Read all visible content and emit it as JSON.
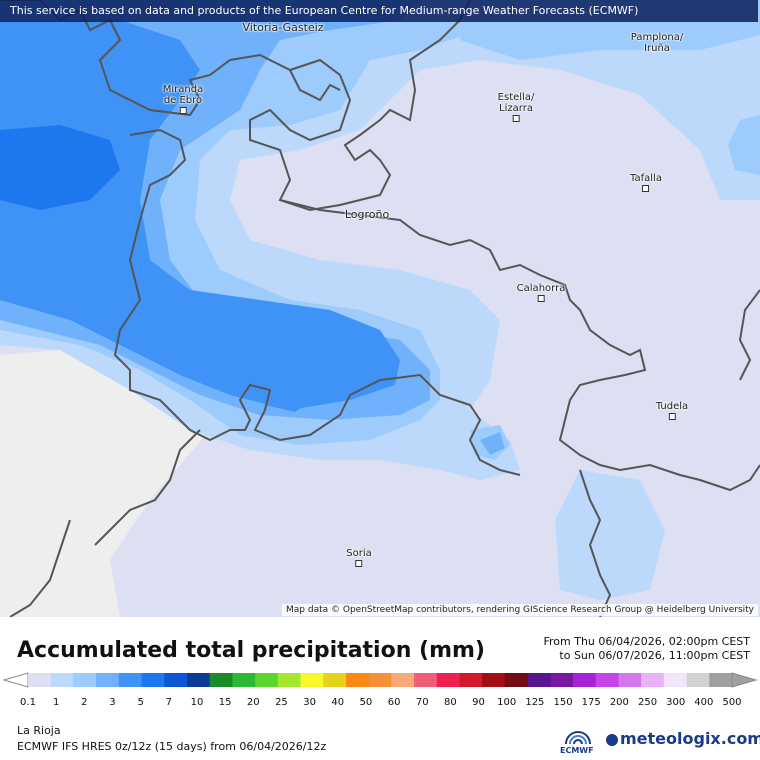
{
  "map": {
    "banner": "This service is based on data and products of the European Centre for Medium-range Weather Forecasts (ECMWF)",
    "attribution": "Map data © OpenStreetMap contributors, rendering GIScience Research Group @ Heidelberg University",
    "cities": [
      {
        "id": "vitoria",
        "label": "Vitoria-Gasteiz",
        "marker": false
      },
      {
        "id": "pamplona",
        "label": "Pamplona/\nIruña",
        "marker": false
      },
      {
        "id": "miranda",
        "label": "Miranda\nde Ebro",
        "marker": true
      },
      {
        "id": "estella",
        "label": "Estella/\nLizarra",
        "marker": true
      },
      {
        "id": "tafalla",
        "label": "Tafalla",
        "marker": true
      },
      {
        "id": "logrono",
        "label": "Logroño",
        "marker": false
      },
      {
        "id": "calahorra",
        "label": "Calahorra",
        "marker": true
      },
      {
        "id": "tudela",
        "label": "Tudela",
        "marker": true
      },
      {
        "id": "soria",
        "label": "Soria",
        "marker": true
      }
    ]
  },
  "legend": {
    "title": "Accumulated total precipitation (mm)",
    "period_from": "From Thu 06/04/2026, 02:00pm CEST",
    "period_to": "to Sun 06/07/2026, 11:00pm CEST",
    "levels": [
      "0.1",
      "1",
      "2",
      "3",
      "5",
      "7",
      "10",
      "15",
      "20",
      "25",
      "30",
      "40",
      "50",
      "60",
      "70",
      "80",
      "90",
      "100",
      "125",
      "150",
      "175",
      "200",
      "250",
      "300",
      "400",
      "500"
    ],
    "colors": [
      "#dde0f2",
      "#bcd8fb",
      "#9ccbfc",
      "#6fb1fb",
      "#3f93f6",
      "#1d78f0",
      "#0d57d6",
      "#0b3c96",
      "#1b8a2a",
      "#2db934",
      "#5ed52c",
      "#a5e62f",
      "#f8f82a",
      "#e6d21a",
      "#f98914",
      "#f59034",
      "#f9a978",
      "#ef5d79",
      "#ef2050",
      "#d3182d",
      "#a10f14",
      "#730c14",
      "#5a148c",
      "#7a18a0",
      "#a524d8",
      "#c445ea",
      "#d477ee",
      "#ebb1f6",
      "#f4e6fa",
      "#d2d2d2",
      "#9f9f9f"
    ],
    "region": "La Rioja",
    "model": "ECMWF IFS HRES 0z/12z (15 days) from  06/04/2026/12z"
  },
  "branding": {
    "ecmwf_label": "ECMWF",
    "site": "meteologix.com"
  }
}
